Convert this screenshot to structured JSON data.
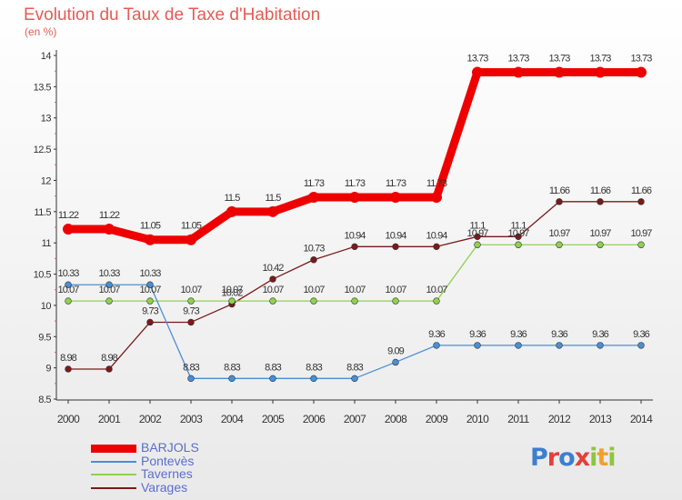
{
  "title": "Evolution du Taux de Taxe d'Habitation",
  "unit_label": "(en %)",
  "logo_text": "Proxiti",
  "chart_data": {
    "type": "line",
    "x": [
      "2000",
      "2001",
      "2002",
      "2003",
      "2004",
      "2005",
      "2006",
      "2007",
      "2008",
      "2009",
      "2010",
      "2011",
      "2012",
      "2013",
      "2014"
    ],
    "ylim": [
      8.5,
      14
    ],
    "yticks": [
      "8.5",
      "9",
      "9.5",
      "10",
      "10.5",
      "11",
      "11.5",
      "12",
      "12.5",
      "13",
      "13.5",
      "14"
    ],
    "grid": false,
    "legend_position": "bottom-left",
    "series": [
      {
        "name": "BARJOLS",
        "color": "#ee0000",
        "values": [
          11.22,
          11.22,
          11.05,
          11.05,
          11.5,
          11.5,
          11.73,
          11.73,
          11.73,
          11.73,
          13.73,
          13.73,
          13.73,
          13.73,
          13.73
        ],
        "labels": [
          "11.22",
          "11.22",
          "11.05",
          "11.05",
          "11.5",
          "11.5",
          "11.73",
          "11.73",
          "11.73",
          "11.73",
          "13.73",
          "13.73",
          "13.73",
          "13.73",
          "13.73"
        ]
      },
      {
        "name": "Pontevès",
        "color": "#4a8fd4",
        "values": [
          10.33,
          10.33,
          10.33,
          8.83,
          8.83,
          8.83,
          8.83,
          8.83,
          9.09,
          9.36,
          9.36,
          9.36,
          9.36,
          9.36,
          9.36
        ],
        "labels": [
          "10.33",
          "10.33",
          "10.33",
          "8.83",
          "8.83",
          "8.83",
          "8.83",
          "8.83",
          "9.09",
          "9.36",
          "9.36",
          "9.36",
          "9.36",
          "9.36",
          "9.36"
        ]
      },
      {
        "name": "Tavernes",
        "color": "#8fd14f",
        "values": [
          10.07,
          10.07,
          10.07,
          10.07,
          10.07,
          10.07,
          10.07,
          10.07,
          10.07,
          10.07,
          10.97,
          10.97,
          10.97,
          10.97,
          10.97
        ],
        "labels": [
          "10.07",
          "10.07",
          "10.07",
          "10.07",
          "10.07",
          "10.07",
          "10.07",
          "10.07",
          "10.07",
          "10.07",
          "10.97",
          "10.97",
          "10.97",
          "10.97",
          "10.97"
        ]
      },
      {
        "name": "Varages",
        "color": "#7a1a1a",
        "values": [
          8.98,
          8.98,
          9.73,
          9.73,
          10.02,
          10.42,
          10.73,
          10.94,
          10.94,
          10.94,
          11.1,
          11.1,
          11.66,
          11.66,
          11.66
        ],
        "labels": [
          "8.98",
          "8.98",
          "9.73",
          "9.73",
          "10.02",
          "10.42",
          "10.73",
          "10.94",
          "10.94",
          "10.94",
          "11.1",
          "11.1",
          "11.66",
          "11.66",
          "11.66"
        ]
      }
    ]
  }
}
